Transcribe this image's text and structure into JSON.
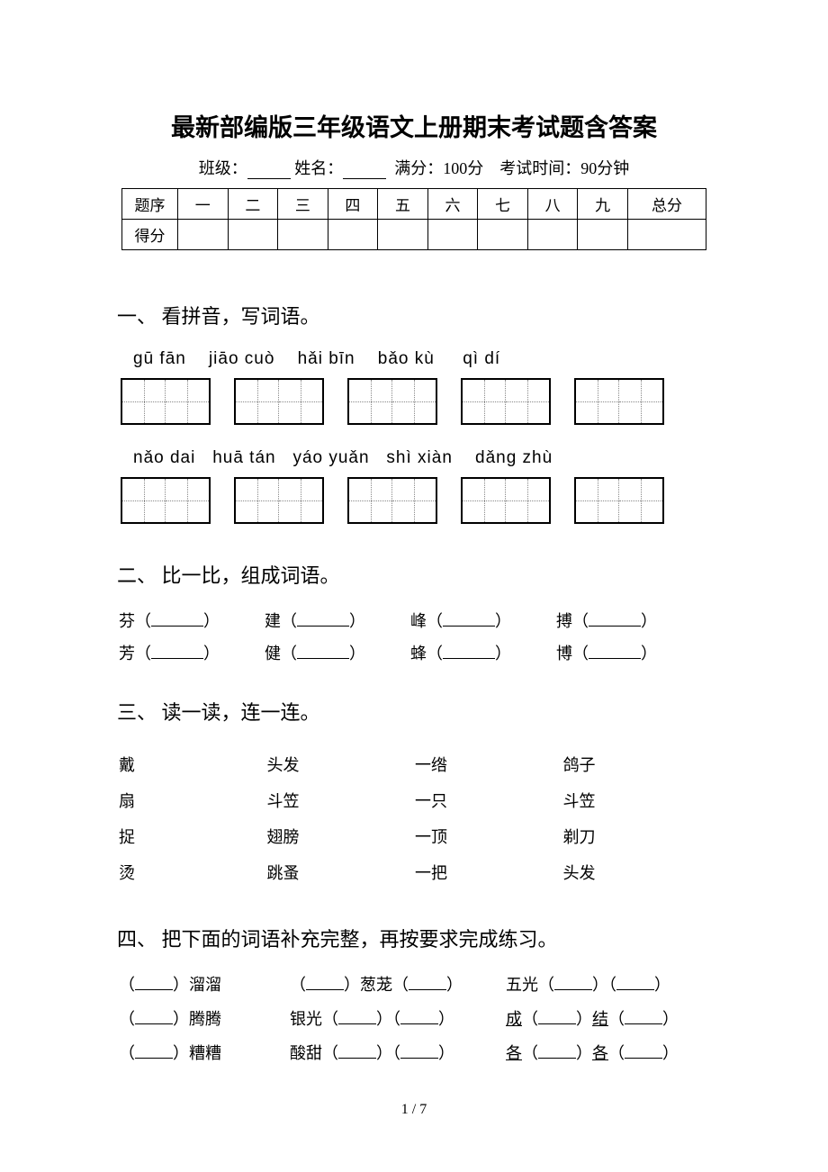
{
  "title": "最新部编版三年级语文上册期末考试题含答案",
  "header": {
    "class_label": "班级：",
    "name_label": "姓名：",
    "full_score": "满分：100分",
    "time": "考试时间：90分钟"
  },
  "score_table": {
    "row1": [
      "题序",
      "一",
      "二",
      "三",
      "四",
      "五",
      "六",
      "七",
      "八",
      "九",
      "总分"
    ],
    "row2_label": "得分"
  },
  "section1": {
    "heading": "一、 看拼音，写词语。",
    "pinyin_row1": [
      "gū fān",
      "jiāo cuò",
      "hǎi bīn",
      "bǎo kù",
      "qì dí"
    ],
    "pinyin_row2": [
      "nǎo dai",
      "huā tán",
      "yáo yuǎn",
      "shì xiàn",
      "dǎng zhù"
    ]
  },
  "section2": {
    "heading": "二、 比一比，组成词语。",
    "rows": [
      [
        "芬",
        "建",
        "峰",
        "搏"
      ],
      [
        "芳",
        "健",
        "蜂",
        "博"
      ]
    ]
  },
  "section3": {
    "heading": "三、 读一读，连一连。",
    "rows": [
      [
        "戴",
        "头发",
        "一绺",
        "鸽子"
      ],
      [
        "扇",
        "斗笠",
        "一只",
        "斗笠"
      ],
      [
        "捉",
        "翅膀",
        "一顶",
        "剃刀"
      ],
      [
        "烫",
        "跳蚤",
        "一把",
        "头发"
      ]
    ]
  },
  "section4": {
    "heading": "四、 把下面的词语补充完整，再按要求完成练习。",
    "rows": [
      {
        "c1_suffix": "溜溜",
        "c2_prefix": "",
        "c2_mid": "葱茏",
        "c2_suffix": "",
        "c3_pre": "五光",
        "underline": false
      },
      {
        "c1_suffix": "腾腾",
        "c2_prefix": "银光",
        "c2_mid": "",
        "c2_suffix": "",
        "c3_pre": "成",
        "c3_mid": "结",
        "underline": true
      },
      {
        "c1_suffix": "糟糟",
        "c2_prefix": "酸甜",
        "c2_mid": "",
        "c2_suffix": "",
        "c3_pre": "各",
        "c3_mid": "各",
        "underline": true
      }
    ]
  },
  "footer": "1 / 7"
}
